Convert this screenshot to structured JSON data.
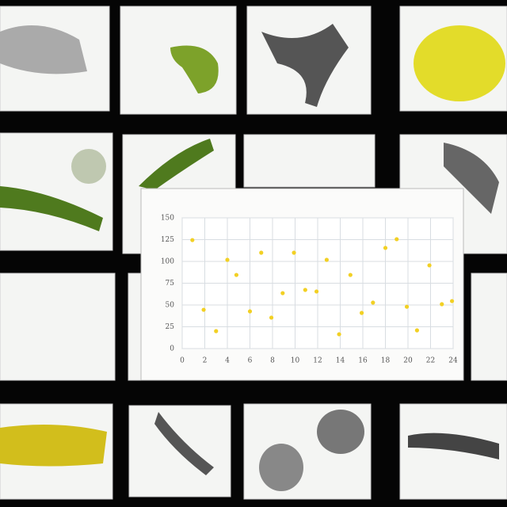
{
  "chart_data": {
    "type": "scatter",
    "x": [
      0.9,
      4.0,
      4.8,
      7.0,
      9.9,
      12.8,
      14.9,
      18.0,
      19.0,
      21.9,
      1.9,
      3.0,
      6.0,
      7.9,
      8.9,
      10.9,
      11.9,
      13.9,
      15.9,
      16.9,
      19.9,
      20.8,
      23.0,
      23.9
    ],
    "values": [
      124.5,
      101.8,
      84.5,
      110,
      110,
      101.8,
      84.5,
      115.5,
      125.5,
      95.5,
      44.5,
      20,
      42.7,
      35.5,
      63.6,
      67.3,
      65.5,
      16.4,
      40.9,
      52.7,
      48,
      20.9,
      50.9,
      54.5
    ],
    "color": "#f2d024",
    "xlim": [
      0,
      24
    ],
    "xticks": [
      0,
      2,
      4,
      6,
      8,
      10,
      12,
      14,
      16,
      18,
      20,
      22,
      24
    ],
    "ylim": [
      0,
      150
    ],
    "yticks": [
      0,
      25,
      50,
      75,
      100,
      125,
      150
    ],
    "grid": true
  }
}
